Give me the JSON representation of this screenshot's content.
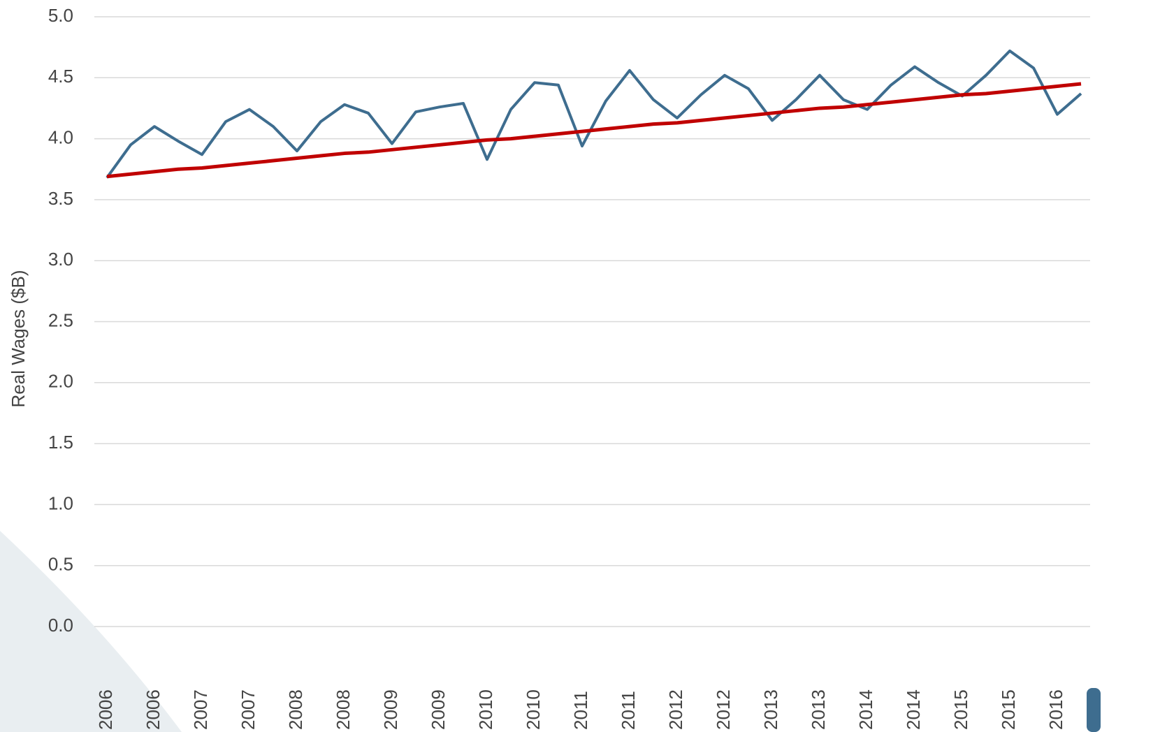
{
  "chart_data": {
    "type": "line",
    "y_label": "Real Wages ($B)",
    "categories": [
      "2006",
      null,
      "2006",
      null,
      "2007",
      null,
      "2007",
      null,
      "2008",
      null,
      "2008",
      null,
      "2009",
      null,
      "2009",
      null,
      "2010",
      null,
      "2010",
      null,
      "2011",
      null,
      "2011",
      null,
      "2012",
      null,
      "2012",
      null,
      "2013",
      null,
      "2013",
      null,
      "2014",
      null,
      "2014",
      null,
      "2015",
      null,
      "2015",
      null,
      "2016",
      null
    ],
    "series": [
      {
        "color": "#3e6d8f",
        "values": [
          3.68,
          3.95,
          4.1,
          3.98,
          3.87,
          4.14,
          4.24,
          4.1,
          3.9,
          4.14,
          4.28,
          4.21,
          3.96,
          4.22,
          4.26,
          4.29,
          3.83,
          4.24,
          4.46,
          4.44,
          3.94,
          4.31,
          4.56,
          4.32,
          4.17,
          4.36,
          4.52,
          4.41,
          4.15,
          4.32,
          4.52,
          4.32,
          4.24,
          4.44,
          4.59,
          4.46,
          4.35,
          4.52,
          4.72,
          4.58,
          4.2,
          4.37
        ]
      },
      {
        "color": "#c00000",
        "values": [
          3.69,
          3.71,
          3.73,
          3.75,
          3.76,
          3.78,
          3.8,
          3.82,
          3.84,
          3.86,
          3.88,
          3.89,
          3.91,
          3.93,
          3.95,
          3.97,
          3.99,
          4.0,
          4.02,
          4.04,
          4.06,
          4.08,
          4.1,
          4.12,
          4.13,
          4.15,
          4.17,
          4.19,
          4.21,
          4.23,
          4.25,
          4.26,
          4.28,
          4.3,
          4.32,
          4.34,
          4.36,
          4.37,
          4.39,
          4.41,
          4.43,
          4.45
        ]
      }
    ],
    "ylim": [
      0,
      5
    ],
    "yticks": [
      {
        "value": 0,
        "label": "0.0"
      },
      0.5,
      {
        "value": 1,
        "label": "1.0"
      },
      1.5,
      {
        "value": 2,
        "label": "2.0"
      },
      2.5,
      {
        "value": 3,
        "label": "3.0"
      },
      3.5,
      {
        "value": 4,
        "label": "4.0"
      },
      4.5,
      {
        "value": 5,
        "label": "5.0"
      }
    ],
    "grid": true
  }
}
